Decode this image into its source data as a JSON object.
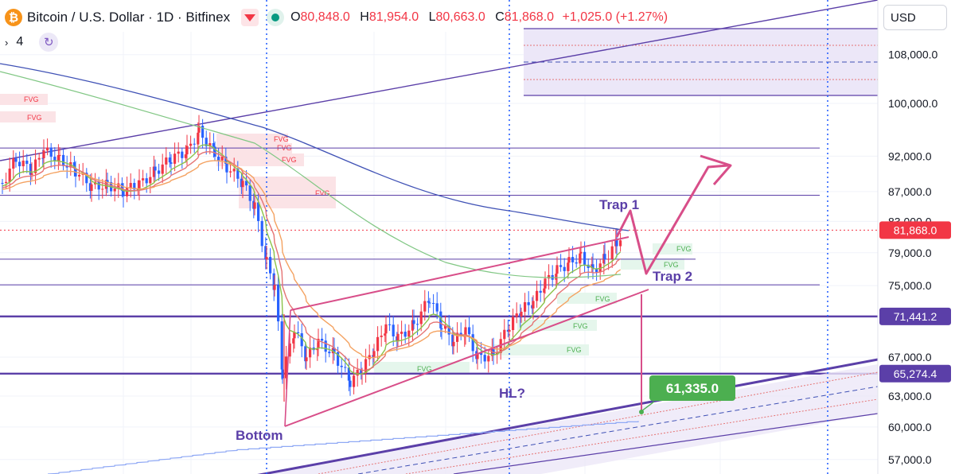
{
  "header": {
    "symbol_title": "Bitcoin / U.S. Dollar · 1D · Bitfinex",
    "coin_glyph": "₿",
    "ohlc": {
      "open_label": "O",
      "open": "80,848.0",
      "high_label": "H",
      "high": "81,954.0",
      "low_label": "L",
      "low": "80,663.0",
      "close_label": "C",
      "close": "81,868.0",
      "change": "+1,025.0 (+1.27%)"
    },
    "indicator_count": "4",
    "chevron": "›"
  },
  "currency": "USD",
  "colors": {
    "up": "#f23645",
    "down": "#2962ff",
    "purple": "#5b3fa8",
    "pink": "#d84e89",
    "dotted_blue": "#2962ff",
    "price_tag": "#f23645",
    "target_tag": "#4caf50"
  },
  "chart_data": {
    "type": "candlestick",
    "y_axis": {
      "scale": "log",
      "ticks": [
        "108,000.0",
        "100,000.0",
        "92,000.0",
        "87,000.0",
        "83,000.0",
        "79,000.0",
        "75,000.0",
        "67,000.0",
        "63,000.0",
        "60,000.0",
        "57,000.0"
      ]
    },
    "price_tags": [
      {
        "value": 81868.0,
        "label": "81,868.0",
        "color": "#f23645"
      },
      {
        "value": 71441.2,
        "label": "71,441.2",
        "color": "#5b3fa8"
      },
      {
        "value": 65274.4,
        "label": "65,274.4",
        "color": "#5b3fa8"
      }
    ],
    "horizontal_levels": [
      93200,
      86500,
      78200,
      75100,
      71441.2,
      65274.4
    ],
    "fvg_labels": [
      "FVG",
      "FVG",
      "FVG",
      "FVG",
      "FVG",
      "FVG",
      "FVG",
      "FVG",
      "FVG",
      "FVG",
      "FVG",
      "FVG",
      "FVG"
    ],
    "annotations": {
      "trap1": "Trap 1",
      "trap2": "Trap 2",
      "bottom": "Bottom",
      "hl": "HL?",
      "target": "61,335.0"
    },
    "target_value": 61335.0
  }
}
